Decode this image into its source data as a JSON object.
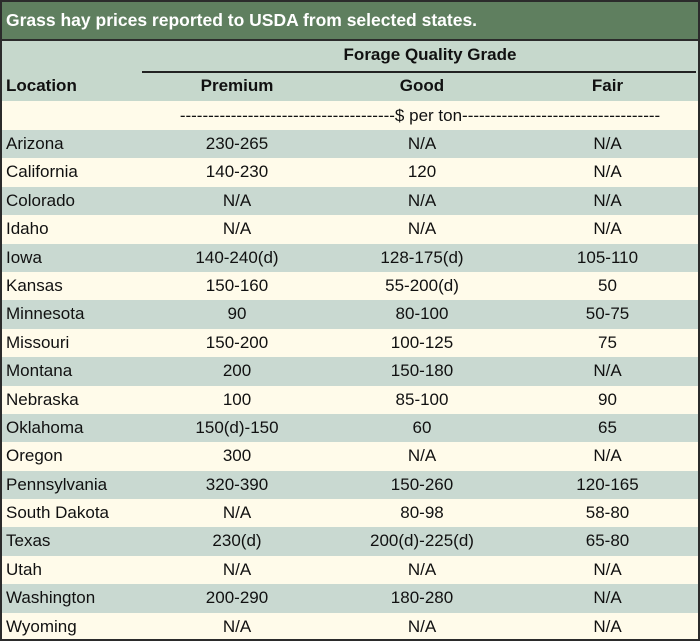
{
  "title": "Grass hay prices reported to USDA from selected states.",
  "group_header": "Forage Quality Grade",
  "columns": [
    "Location",
    "Premium",
    "Good",
    "Fair"
  ],
  "unit": "--------------------------------------$ per ton-----------------------------------",
  "rows": [
    [
      "Arizona",
      "230-265",
      "N/A",
      "N/A"
    ],
    [
      "California",
      "140-230",
      "120",
      "N/A"
    ],
    [
      "Colorado",
      "N/A",
      "N/A",
      "N/A"
    ],
    [
      "Idaho",
      "N/A",
      "N/A",
      "N/A"
    ],
    [
      "Iowa",
      "140-240(d)",
      "128-175(d)",
      "105-110"
    ],
    [
      "Kansas",
      "150-160",
      "55-200(d)",
      "50"
    ],
    [
      "Minnesota",
      "90",
      "80-100",
      "50-75"
    ],
    [
      "Missouri",
      "150-200",
      "100-125",
      "75"
    ],
    [
      "Montana",
      "200",
      "150-180",
      "N/A"
    ],
    [
      "Nebraska",
      "100",
      "85-100",
      "90"
    ],
    [
      "Oklahoma",
      "150(d)-150",
      "60",
      "65"
    ],
    [
      "Oregon",
      "300",
      "N/A",
      "N/A"
    ],
    [
      "Pennsylvania",
      "320-390",
      "150-260",
      "120-165"
    ],
    [
      "South Dakota",
      "N/A",
      "80-98",
      "58-80"
    ],
    [
      "Texas",
      "230(d)",
      "200(d)-225(d)",
      "65-80"
    ],
    [
      "Utah",
      "N/A",
      "N/A",
      "N/A"
    ],
    [
      "Washington",
      "200-290",
      "180-280",
      "N/A"
    ],
    [
      "Wyoming",
      "N/A",
      "N/A",
      "N/A"
    ]
  ]
}
